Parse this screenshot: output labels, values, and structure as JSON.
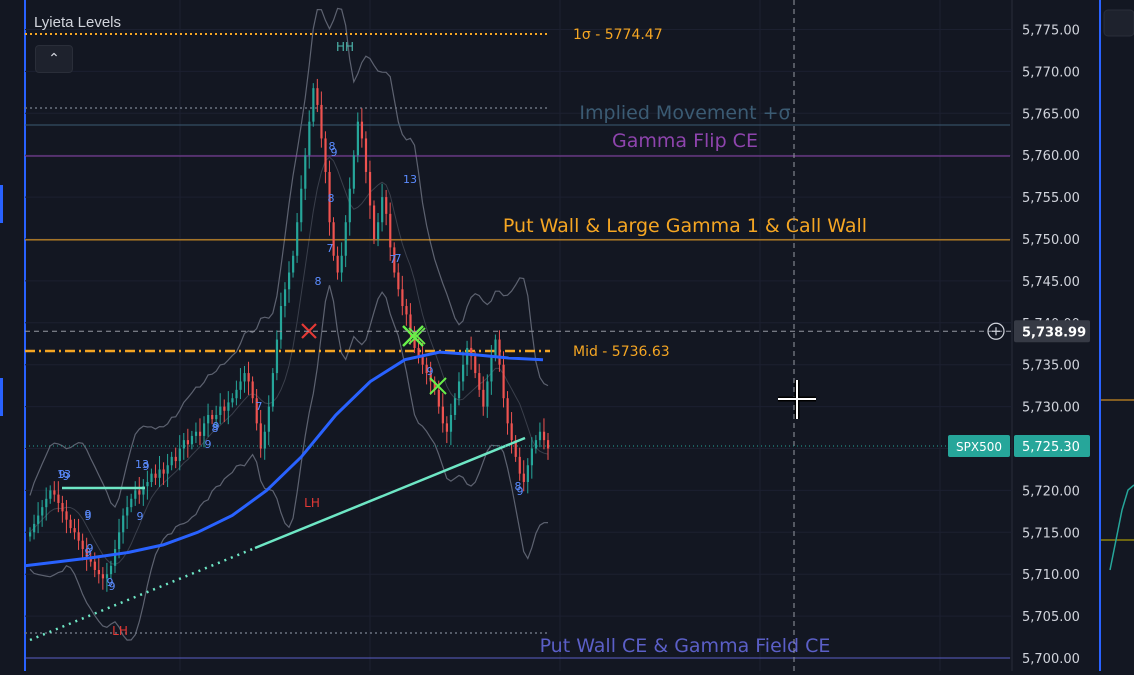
{
  "indicator": {
    "title": "Lyieta Levels",
    "collapse_icon": "chevron-up-icon"
  },
  "chart_data": {
    "type": "candlestick",
    "symbol": "SPX500",
    "last_price": "5,725.30",
    "crosshair_price": "5,738.99",
    "ylim": [
      5700,
      5777
    ],
    "y_ticks": [
      "5,775.00",
      "5,770.00",
      "5,765.00",
      "5,760.00",
      "5,755.00",
      "5,750.00",
      "5,745.00",
      "5,740.00",
      "5,735.00",
      "5,730.00",
      "5,725.00",
      "5,720.00",
      "5,715.00",
      "5,710.00",
      "5,705.00",
      "5,700.00"
    ],
    "levels": [
      {
        "label": "1σ - 5774.47",
        "price": 5774.47,
        "color": "#f5a623",
        "style": "dotted"
      },
      {
        "label": "Implied Movement +σ",
        "price": 5763.6,
        "color": "#3b5b73",
        "style": "solid"
      },
      {
        "label": "Gamma Flip CE",
        "price": 5759.9,
        "color": "#8e44ad",
        "style": "solid"
      },
      {
        "label": "Put Wall & Large Gamma 1 & Call Wall",
        "price": 5749.9,
        "color": "#f5a623",
        "style": "solid"
      },
      {
        "label": "Mid - 5736.63",
        "price": 5736.63,
        "color": "#f5a623",
        "style": "dashdot"
      },
      {
        "label": "Put Wall CE & Gamma Field CE",
        "price": 5700.0,
        "color": "#5b5fc7",
        "style": "solid"
      }
    ],
    "series": [
      {
        "name": "price",
        "closes": [
          5715,
          5716,
          5717,
          5718,
          5719,
          5720,
          5719.5,
          5718.5,
          5717.5,
          5716.5,
          5715.5,
          5715,
          5714,
          5713,
          5712,
          5711.5,
          5710.5,
          5710,
          5709.5,
          5710,
          5711,
          5713,
          5715,
          5717,
          5718,
          5719,
          5720,
          5719.5,
          5720.5,
          5721,
          5722,
          5721.5,
          5722.5,
          5722,
          5723,
          5724,
          5723.5,
          5725,
          5726,
          5725.5,
          5726.5,
          5727,
          5726.5,
          5728,
          5729,
          5728.5,
          5729,
          5730,
          5729.5,
          5730.5,
          5731,
          5732,
          5733,
          5734,
          5733,
          5731,
          5728,
          5725,
          5727,
          5730,
          5734,
          5738,
          5742,
          5744,
          5746,
          5748,
          5752,
          5756,
          5760,
          5764,
          5768,
          5766,
          5762,
          5758,
          5752,
          5748,
          5746,
          5748,
          5752,
          5756,
          5760,
          5764,
          5762,
          5758,
          5754,
          5750,
          5752,
          5755,
          5753,
          5749,
          5746,
          5744,
          5742,
          5741,
          5739,
          5737,
          5736,
          5735,
          5734,
          5733,
          5732,
          5730,
          5728,
          5727,
          5729,
          5731,
          5733,
          5735,
          5737,
          5736,
          5734,
          5732,
          5730,
          5733,
          5736,
          5738,
          5735,
          5731,
          5728,
          5726,
          5724,
          5722,
          5721,
          5723,
          5725,
          5726,
          5727,
          5726,
          5725
        ]
      },
      {
        "name": "vwap",
        "values": [
          5711,
          5711.5,
          5712,
          5712.6,
          5713.5,
          5715,
          5717,
          5720,
          5724,
          5729,
          5733,
          5735.6,
          5736.5,
          5736.2,
          5735.8,
          5735.6
        ]
      }
    ],
    "pivots": [
      {
        "label": "HH",
        "color": "#4db6ac"
      },
      {
        "label": "LH",
        "color": "#e53935"
      },
      {
        "label": "LH",
        "color": "#e53935"
      }
    ],
    "counts": [
      "13",
      "9",
      "8",
      "7",
      "7",
      "8",
      "7",
      "8",
      "9",
      "9",
      "9",
      "9",
      "9",
      "9",
      "9",
      "9",
      "13",
      "8",
      "7",
      "13",
      "9",
      "9",
      "9",
      "9",
      "9",
      "9",
      "8"
    ]
  }
}
